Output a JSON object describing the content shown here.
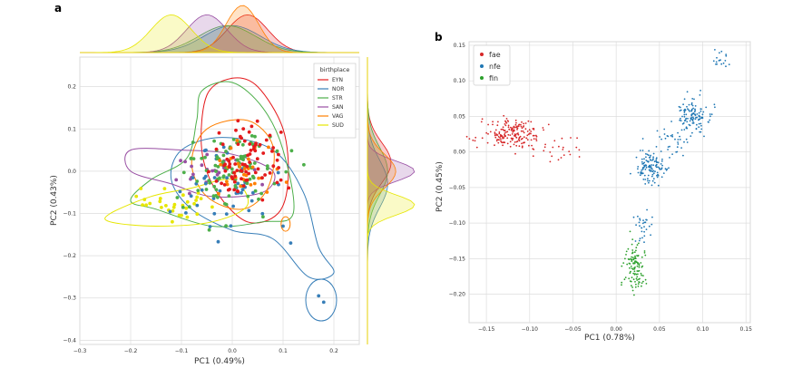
{
  "panels": {
    "a": "a",
    "b": "b"
  },
  "chart_data": [
    {
      "type": "scatter",
      "title": "",
      "xlabel": "PC1 (0.49%)",
      "ylabel": "PC2 (0.43%)",
      "xlim": [
        -0.3,
        0.25
      ],
      "ylim": [
        -0.41,
        0.27
      ],
      "xticks": [
        -0.3,
        -0.2,
        -0.1,
        0.0,
        0.1,
        0.2
      ],
      "xtick_labels": [
        "−0.3",
        "−0.2",
        "−0.1",
        "0.0",
        "0.1",
        "0.2"
      ],
      "yticks": [
        -0.4,
        -0.3,
        -0.2,
        -0.1,
        0.0,
        0.1,
        0.2
      ],
      "ytick_labels": [
        "−0.4",
        "−0.3",
        "−0.2",
        "−0.1",
        "0.0",
        "0.1",
        "0.2"
      ],
      "grid": true,
      "legend": {
        "title": "birthplace",
        "position": "top-right"
      },
      "marginals": {
        "top": "kde of PC1 per birthplace",
        "right": "kde of PC2 per birthplace"
      },
      "series": [
        {
          "name": "EYN",
          "color": "#e41a1c",
          "center": [
            0.03,
            0.02
          ],
          "spread": [
            0.05,
            0.06
          ],
          "n": 80,
          "contour": [
            [
              -0.05,
              0.18
            ],
            [
              0.0,
              0.22
            ],
            [
              0.05,
              0.2
            ],
            [
              0.1,
              0.1
            ],
            [
              0.11,
              -0.02
            ],
            [
              0.09,
              -0.1
            ],
            [
              0.03,
              -0.12
            ],
            [
              -0.03,
              -0.05
            ],
            [
              -0.06,
              0.05
            ]
          ]
        },
        {
          "name": "NOR",
          "color": "#377eb8",
          "center": [
            0.0,
            -0.03
          ],
          "spread": [
            0.07,
            0.07
          ],
          "n": 50,
          "contour": [
            [
              -0.1,
              0.05
            ],
            [
              -0.02,
              0.08
            ],
            [
              0.08,
              0.05
            ],
            [
              0.14,
              -0.05
            ],
            [
              0.17,
              -0.18
            ],
            [
              0.2,
              -0.24
            ],
            [
              0.15,
              -0.25
            ],
            [
              0.08,
              -0.16
            ],
            [
              0.0,
              -0.14
            ],
            [
              -0.08,
              -0.09
            ],
            [
              -0.12,
              -0.02
            ]
          ]
        },
        {
          "name": "STR",
          "color": "#4daf4a",
          "center": [
            -0.01,
            0.0
          ],
          "spread": [
            0.07,
            0.07
          ],
          "n": 100,
          "contour": [
            [
              -0.06,
              0.19
            ],
            [
              0.0,
              0.21
            ],
            [
              0.06,
              0.15
            ],
            [
              0.1,
              0.05
            ],
            [
              0.12,
              -0.1
            ],
            [
              0.06,
              -0.12
            ],
            [
              -0.04,
              -0.13
            ],
            [
              -0.15,
              -0.09
            ],
            [
              -0.2,
              -0.07
            ],
            [
              -0.16,
              -0.02
            ],
            [
              -0.09,
              0.03
            ],
            [
              -0.07,
              0.12
            ]
          ]
        },
        {
          "name": "SAN",
          "color": "#984ea3",
          "center": [
            -0.05,
            0.0
          ],
          "spread": [
            0.05,
            0.03
          ],
          "n": 25,
          "contour": [
            [
              -0.2,
              0.05
            ],
            [
              -0.1,
              0.05
            ],
            [
              0.0,
              0.04
            ],
            [
              0.08,
              0.0
            ],
            [
              0.06,
              -0.05
            ],
            [
              -0.04,
              -0.06
            ],
            [
              -0.12,
              -0.03
            ],
            [
              -0.2,
              0.0
            ]
          ]
        },
        {
          "name": "VAG",
          "color": "#ff7f00",
          "center": [
            0.02,
            0.0
          ],
          "spread": [
            0.04,
            0.05
          ],
          "n": 30,
          "contour": [
            [
              -0.05,
              0.1
            ],
            [
              0.03,
              0.12
            ],
            [
              0.08,
              0.06
            ],
            [
              0.07,
              -0.04
            ],
            [
              0.02,
              -0.09
            ],
            [
              -0.05,
              -0.06
            ],
            [
              -0.08,
              0.02
            ]
          ]
        },
        {
          "name": "SUD",
          "color": "#e6e600",
          "center": [
            -0.12,
            -0.08
          ],
          "spread": [
            0.05,
            0.03
          ],
          "n": 30,
          "contour": [
            [
              -0.24,
              -0.1
            ],
            [
              -0.16,
              -0.06
            ],
            [
              -0.08,
              -0.04
            ],
            [
              0.0,
              -0.02
            ],
            [
              0.03,
              -0.08
            ],
            [
              -0.04,
              -0.12
            ],
            [
              -0.15,
              -0.13
            ],
            [
              -0.24,
              -0.12
            ]
          ]
        }
      ]
    },
    {
      "type": "scatter",
      "title": "",
      "xlabel": "PC1 (0.78%)",
      "ylabel": "PC2 (0.45%)",
      "xlim": [
        -0.17,
        0.155
      ],
      "ylim": [
        -0.24,
        0.155
      ],
      "xticks": [
        -0.15,
        -0.1,
        -0.05,
        0.0,
        0.05,
        0.1,
        0.15
      ],
      "xtick_labels": [
        "−0.15",
        "−0.10",
        "−0.05",
        "0.00",
        "0.05",
        "0.10",
        "0.15"
      ],
      "yticks": [
        -0.2,
        -0.15,
        -0.1,
        -0.05,
        0.0,
        0.05,
        0.1,
        0.15
      ],
      "ytick_labels": [
        "−0.20",
        "−0.15",
        "−0.10",
        "−0.05",
        "0.00",
        "0.05",
        "0.10",
        "0.15"
      ],
      "grid": true,
      "legend": {
        "position": "top-left"
      },
      "series": [
        {
          "name": "fae",
          "color": "#d62728",
          "clusters": [
            {
              "center": [
                -0.12,
                0.025
              ],
              "spread": [
                0.017,
                0.01
              ],
              "n": 190
            },
            {
              "center": [
                -0.065,
                0.005
              ],
              "spread": [
                0.02,
                0.01
              ],
              "n": 25
            }
          ]
        },
        {
          "name": "nfe",
          "color": "#1f77b4",
          "clusters": [
            {
              "center": [
                0.09,
                0.05
              ],
              "spread": [
                0.01,
                0.011
              ],
              "n": 120
            },
            {
              "center": [
                0.04,
                -0.02
              ],
              "spread": [
                0.009,
                0.012
              ],
              "n": 120
            },
            {
              "center": [
                0.065,
                0.015
              ],
              "spread": [
                0.01,
                0.012
              ],
              "n": 35
            },
            {
              "center": [
                0.12,
                0.125
              ],
              "spread": [
                0.006,
                0.006
              ],
              "n": 18
            },
            {
              "center": [
                0.03,
                -0.1
              ],
              "spread": [
                0.005,
                0.013
              ],
              "n": 30
            }
          ]
        },
        {
          "name": "fin",
          "color": "#2ca02c",
          "clusters": [
            {
              "center": [
                0.022,
                -0.16
              ],
              "spread": [
                0.007,
                0.017
              ],
              "n": 110
            }
          ]
        }
      ]
    }
  ]
}
